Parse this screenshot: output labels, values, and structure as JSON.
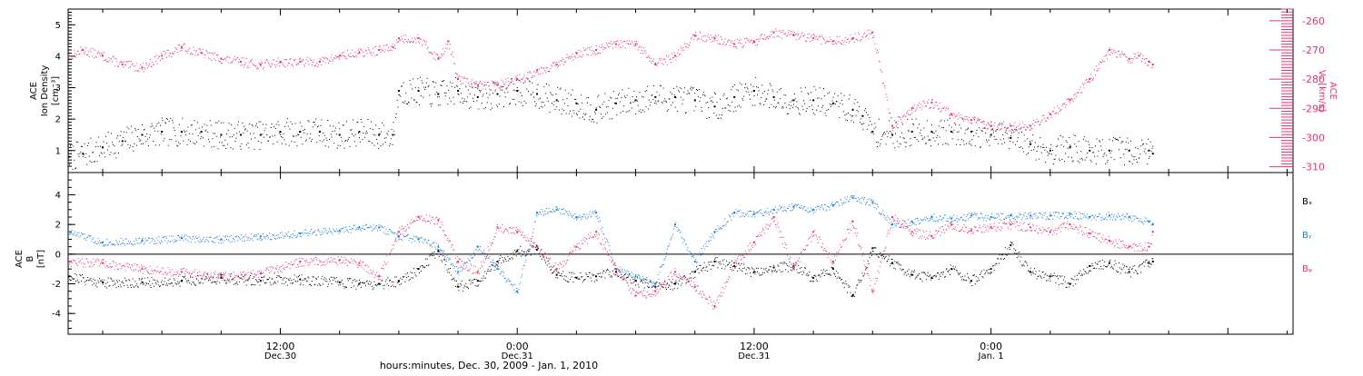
{
  "chart_data": [
    {
      "type": "scatter",
      "panel": "top",
      "left_axis": {
        "label_lines": [
          "ACE",
          "Ion Density",
          "[cm⁻³]"
        ],
        "ylim": [
          0.3,
          5.5
        ],
        "ticks": [
          1,
          2,
          3,
          4,
          5
        ],
        "tick_labels": [
          "1",
          "2",
          "3",
          "4",
          "5"
        ],
        "color": "#000000"
      },
      "right_axis": {
        "label_lines": [
          "ACE",
          "Vₓ [km/s]"
        ],
        "ylim": [
          -312,
          -256
        ],
        "ticks": [
          -310,
          -300,
          -290,
          -280,
          -270,
          -260
        ],
        "tick_labels": [
          "-310",
          "-300",
          "-290",
          "-280",
          "-270",
          "-260"
        ],
        "color": "#e8336d"
      },
      "x_unit": "hours since Dec 30 2009 00:00 UT",
      "xlim": [
        1.25,
        63.3
      ],
      "series": [
        {
          "axis": "left",
          "color": "#000000",
          "x": [
            1.3,
            2,
            3,
            4,
            5,
            6,
            7,
            8,
            9,
            10,
            11,
            12,
            13,
            14,
            15,
            16,
            17,
            17.7,
            18,
            19,
            20,
            21,
            22,
            23,
            24,
            25,
            26,
            27,
            28,
            29,
            30,
            31,
            32,
            33,
            34,
            35,
            36,
            37,
            38,
            39,
            40,
            41,
            41.5,
            42,
            43,
            44,
            45,
            46,
            47,
            48,
            49,
            50,
            51,
            52,
            53,
            54,
            55,
            56,
            56.2
          ],
          "y": [
            0.8,
            0.9,
            1.1,
            1.3,
            1.5,
            1.6,
            1.6,
            1.6,
            1.5,
            1.5,
            1.5,
            1.6,
            1.6,
            1.6,
            1.5,
            1.6,
            1.5,
            1.5,
            2.9,
            2.9,
            2.8,
            2.9,
            2.7,
            2.8,
            2.9,
            2.8,
            2.6,
            2.5,
            2.3,
            2.5,
            2.6,
            2.7,
            2.7,
            2.6,
            2.4,
            2.7,
            2.9,
            2.7,
            2.6,
            2.6,
            2.5,
            2.3,
            2.1,
            1.6,
            1.5,
            1.6,
            1.6,
            1.6,
            1.6,
            1.5,
            1.4,
            1.2,
            1.0,
            1.1,
            1.0,
            1.0,
            1.0,
            1.0,
            0.9
          ]
        },
        {
          "axis": "right",
          "color": "#e8336d",
          "x": [
            1.3,
            2,
            3,
            4,
            5,
            6,
            7,
            8,
            9,
            10,
            11,
            12,
            13,
            14,
            15,
            16,
            17,
            17.7,
            18,
            19,
            20,
            20.5,
            21,
            22,
            23,
            24,
            25,
            26,
            27,
            28,
            29,
            30,
            31,
            32,
            33,
            34,
            35,
            36,
            37,
            38,
            39,
            40,
            41,
            42,
            43,
            44,
            45,
            46,
            47,
            48,
            49,
            50,
            51,
            52,
            53,
            54,
            55,
            55.5,
            56,
            56.2
          ],
          "y": [
            -272,
            -270,
            -272,
            -275,
            -276,
            -272,
            -269,
            -271,
            -273,
            -274,
            -275,
            -274,
            -274,
            -274,
            -272,
            -271,
            -270,
            -269,
            -266,
            -266,
            -273,
            -267,
            -280,
            -282,
            -282,
            -280,
            -277,
            -275,
            -271,
            -270,
            -268,
            -268,
            -275,
            -272,
            -265,
            -266,
            -268,
            -267,
            -264,
            -265,
            -266,
            -267,
            -266,
            -264,
            -296,
            -290,
            -288,
            -292,
            -294,
            -296,
            -296,
            -296,
            -292,
            -287,
            -280,
            -270,
            -273,
            -272,
            -274,
            -275
          ]
        }
      ]
    },
    {
      "type": "scatter",
      "panel": "bottom",
      "left_axis": {
        "label_lines": [
          "ACE",
          "B",
          "[nT]"
        ],
        "ylim": [
          -5.4,
          5.5
        ],
        "ticks": [
          -4,
          -2,
          0,
          2,
          4
        ],
        "tick_labels": [
          "-4",
          "-2",
          "0",
          "2",
          "4"
        ],
        "color": "#000000"
      },
      "zero_line": true,
      "x_unit": "hours since Dec 30 2009 00:00 UT",
      "xlim": [
        1.25,
        63.3
      ],
      "series": [
        {
          "name": "Bₓ",
          "color": "#000000",
          "x": [
            1.3,
            3,
            5,
            7,
            9,
            11,
            13,
            15,
            16,
            17,
            18,
            19,
            20,
            21,
            22,
            23,
            24,
            25,
            26,
            27,
            28,
            29,
            30,
            31,
            32,
            33,
            34,
            35,
            36,
            37,
            38,
            39,
            40,
            41,
            42,
            43,
            44,
            45,
            46,
            47,
            48,
            49,
            50,
            51,
            52,
            53,
            54,
            55,
            56,
            56.2
          ],
          "y": [
            -1.5,
            -1.9,
            -1.9,
            -1.8,
            -1.6,
            -1.8,
            -1.7,
            -1.9,
            -2.0,
            -2.0,
            -1.8,
            -1.0,
            0.2,
            -2.2,
            -1.8,
            -0.5,
            0.2,
            0.3,
            -1.4,
            -1.6,
            -1.5,
            -1.2,
            -1.8,
            -2.2,
            -2.0,
            -1.2,
            -0.5,
            -0.8,
            -1.2,
            -0.9,
            -0.8,
            -1.6,
            -1.0,
            -2.8,
            0.4,
            -0.6,
            -1.4,
            -1.6,
            -1.0,
            -1.8,
            -1.0,
            0.6,
            -1.2,
            -1.5,
            -2.0,
            -0.8,
            -0.6,
            -1.2,
            -0.6,
            -0.5
          ]
        },
        {
          "name": "Bᵧ",
          "color": "#1e7fd8",
          "x": [
            1.3,
            3,
            5,
            7,
            9,
            11,
            13,
            15,
            16,
            17,
            18,
            19,
            20,
            21,
            22,
            23,
            24,
            25,
            26,
            27,
            28,
            29,
            30,
            31,
            32,
            33,
            34,
            35,
            36,
            37,
            38,
            39,
            40,
            41,
            42,
            43,
            44,
            45,
            46,
            47,
            48,
            49,
            50,
            51,
            52,
            53,
            54,
            55,
            56,
            56.2
          ],
          "y": [
            1.5,
            0.8,
            0.9,
            1.1,
            1.0,
            1.2,
            1.4,
            1.6,
            1.8,
            1.8,
            1.2,
            1.0,
            0.5,
            -1.2,
            0.5,
            -1.0,
            -2.5,
            2.8,
            3.0,
            2.5,
            2.8,
            -1.0,
            -1.5,
            -2.0,
            2.0,
            -0.5,
            1.5,
            2.8,
            2.7,
            3.0,
            3.2,
            3.0,
            3.3,
            3.8,
            3.5,
            2.0,
            2.2,
            2.5,
            2.4,
            2.6,
            2.5,
            2.6,
            2.6,
            2.6,
            2.7,
            2.5,
            2.6,
            2.5,
            2.2,
            2.0
          ]
        },
        {
          "name": "Bᵩ",
          "color": "#e8336d",
          "x": [
            1.3,
            3,
            5,
            7,
            9,
            11,
            13,
            15,
            16,
            17,
            18,
            19,
            20,
            21,
            22,
            23,
            24,
            25,
            26,
            27,
            28,
            29,
            30,
            31,
            32,
            33,
            34,
            35,
            36,
            37,
            38,
            39,
            40,
            41,
            42,
            43,
            44,
            45,
            46,
            47,
            48,
            49,
            50,
            51,
            52,
            53,
            54,
            55,
            56,
            56.2
          ],
          "y": [
            -0.5,
            -0.6,
            -1.0,
            -1.2,
            -1.5,
            -1.3,
            -0.5,
            -0.4,
            -0.6,
            -1.5,
            1.5,
            2.5,
            2.3,
            -0.5,
            -1.2,
            1.8,
            1.5,
            0.5,
            -1.0,
            0.5,
            1.5,
            -1.0,
            -2.8,
            -2.5,
            -1.2,
            -2.2,
            -3.5,
            -0.6,
            0.8,
            2.5,
            -1.0,
            1.5,
            -0.5,
            2.2,
            -2.5,
            2.5,
            1.5,
            1.2,
            2.0,
            1.6,
            1.8,
            2.0,
            1.8,
            1.5,
            2.0,
            1.4,
            0.9,
            0.5,
            0.5,
            1.5
          ]
        }
      ]
    }
  ],
  "legend": {
    "items": [
      {
        "label": "Bₓ",
        "color": "#000000"
      },
      {
        "label": "Bᵧ",
        "color": "#1e7fd8"
      },
      {
        "label": "Bᵩ",
        "color": "#e8336d"
      }
    ],
    "placement": "right"
  },
  "x_axis": {
    "label": "hours:minutes, Dec. 30, 2009 - Jan. 1, 2010",
    "major_ticks": [
      {
        "hour": 12,
        "time": "12:00",
        "date": "Dec.30"
      },
      {
        "hour": 24,
        "time": "0:00",
        "date": "Dec.31"
      },
      {
        "hour": 36,
        "time": "12:00",
        "date": "Dec.31"
      },
      {
        "hour": 48,
        "time": "0:00",
        "date": "Jan. 1"
      }
    ]
  }
}
